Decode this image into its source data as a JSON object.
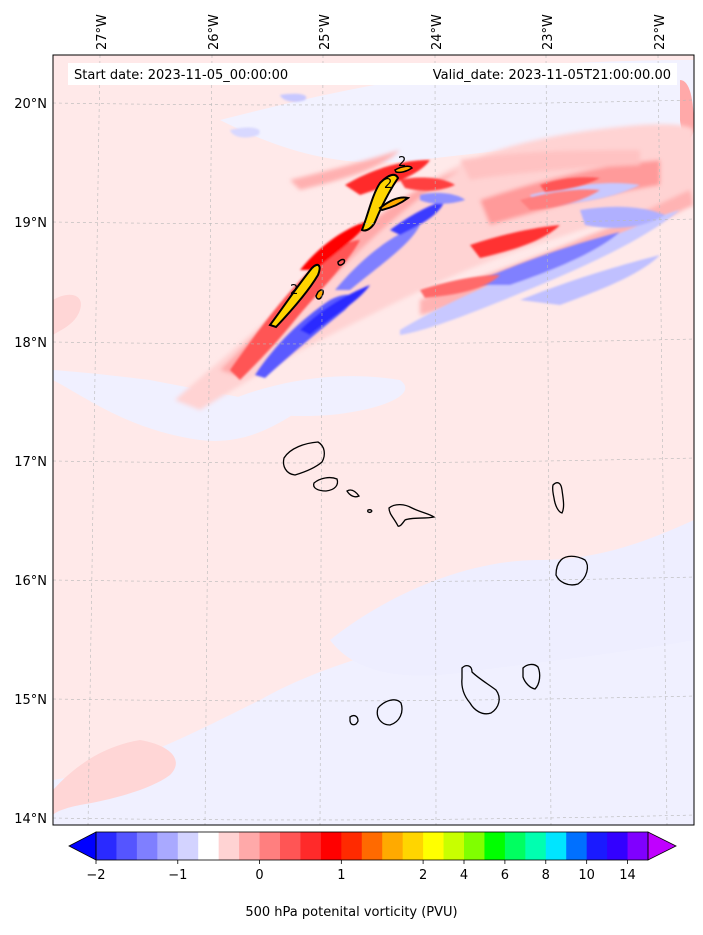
{
  "header": {
    "start_date": "Start date: 2023-11-05_00:00:00",
    "valid_date": "Valid_date: 2023-11-05T21:00:00.00"
  },
  "map": {
    "lon_labels": [
      "27°W",
      "26°W",
      "25°W",
      "24°W",
      "23°W",
      "22°W"
    ],
    "lat_labels": [
      "20°N",
      "19°N",
      "18°N",
      "17°N",
      "16°N",
      "15°N",
      "14°N"
    ],
    "contour_labels": [
      "2",
      "2",
      "2"
    ],
    "grid": true
  },
  "colorbar": {
    "tick_labels": [
      "−2",
      "−1",
      "0",
      "1",
      "2",
      "4",
      "6",
      "8",
      "10",
      "14"
    ],
    "title": "500 hPa potenital vorticity (PVU)",
    "colors": [
      "#0000ff",
      "#2a2aff",
      "#5555ff",
      "#7f7fff",
      "#a9a9ff",
      "#d3d3ff",
      "#ffffff",
      "#ffd3d3",
      "#ffa9a9",
      "#ff7f7f",
      "#ff5555",
      "#ff2a2a",
      "#ff0000",
      "#ff2a00",
      "#ff6a00",
      "#ffaa00",
      "#ffd500",
      "#ffff00",
      "#c8ff00",
      "#80ff00",
      "#00ff00",
      "#00ff60",
      "#00ffb0",
      "#00e5ff",
      "#0070ff",
      "#1a1aff",
      "#3300ff",
      "#8000ff",
      "#c000ff"
    ]
  }
}
